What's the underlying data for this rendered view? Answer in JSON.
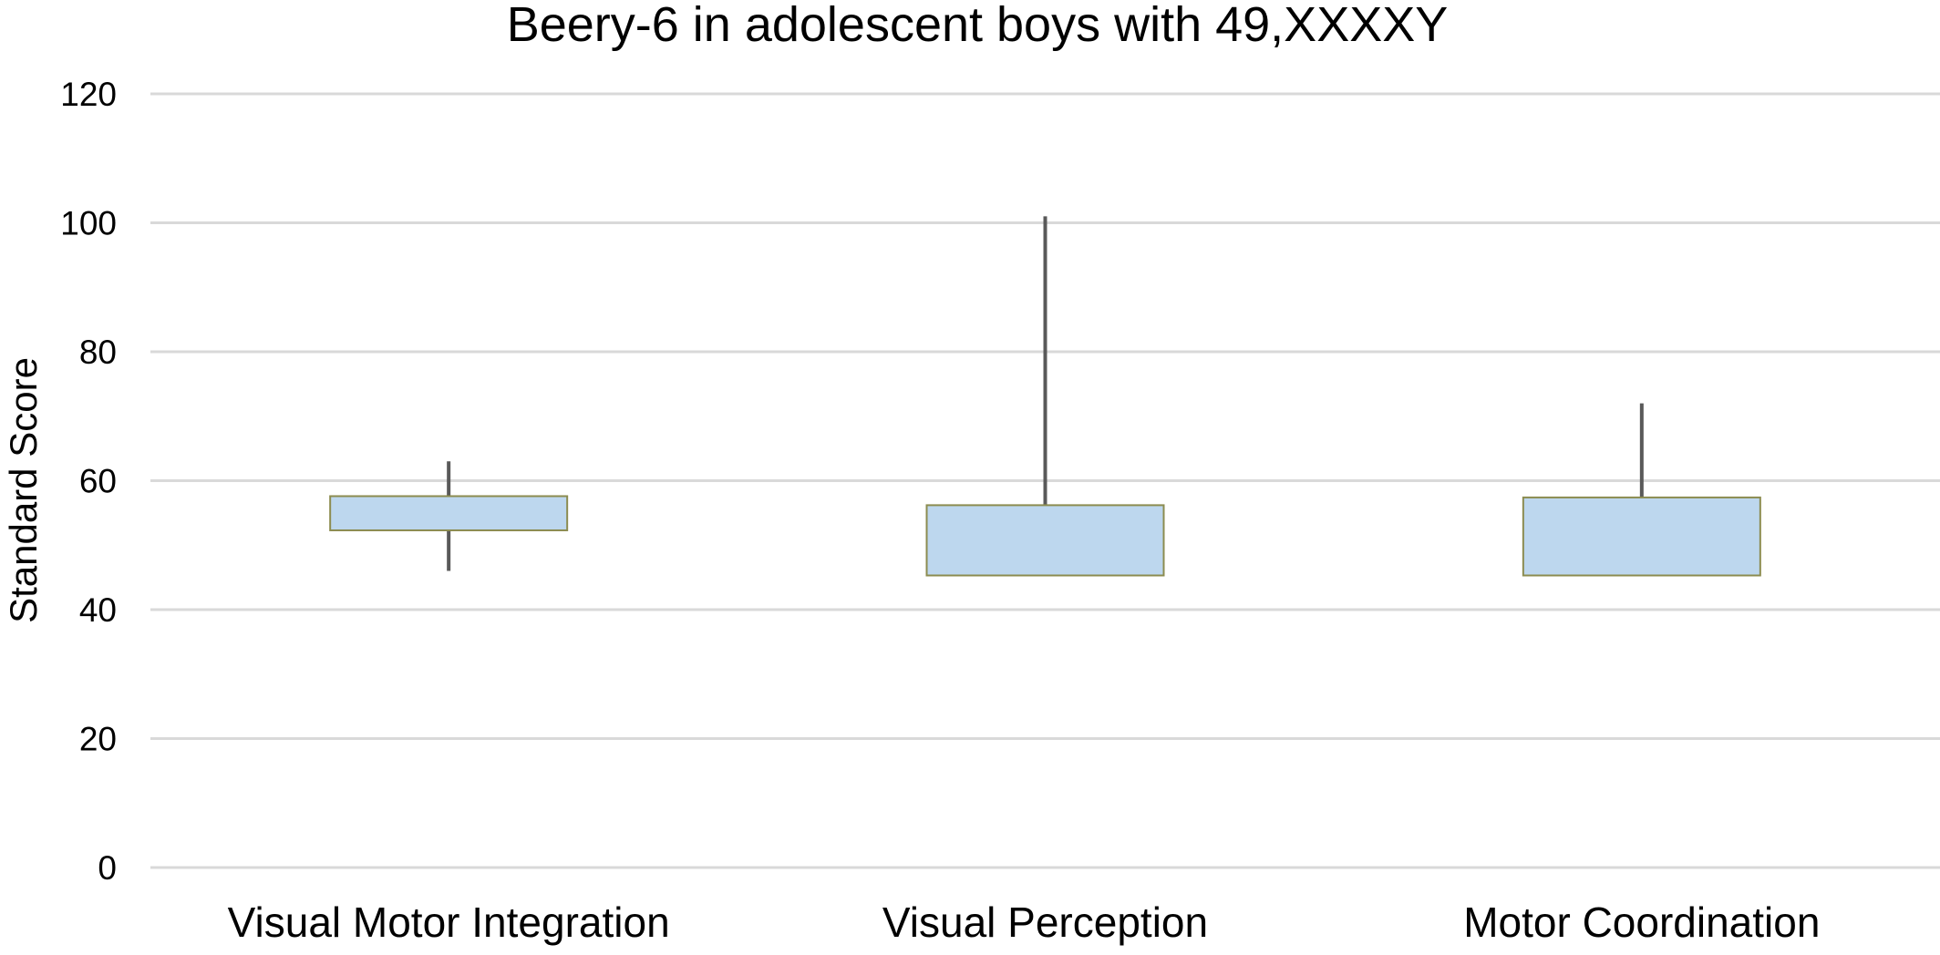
{
  "chart_data": {
    "type": "box",
    "title": "Beery-6 in adolescent boys with 49,XXXXY",
    "xlabel": "",
    "ylabel": "Standard Score",
    "ylim": [
      0,
      120
    ],
    "yticks": [
      0,
      20,
      40,
      60,
      80,
      100,
      120
    ],
    "grid": true,
    "legend": "none",
    "categories": [
      "Visual Motor Integration",
      "Visual Perception",
      "Motor Coordination"
    ],
    "series": [
      {
        "boxes": [
          {
            "category": "Visual Motor Integration",
            "whisker_low": 46,
            "q1": 52.3,
            "q3": 57.6,
            "whisker_high": 63
          },
          {
            "category": "Visual Perception",
            "whisker_low": 45.3,
            "q1": 45.3,
            "q3": 56.2,
            "whisker_high": 101
          },
          {
            "category": "Motor Coordination",
            "whisker_low": 45.3,
            "q1": 45.3,
            "q3": 57.4,
            "whisker_high": 72
          }
        ]
      }
    ],
    "colors": {
      "box_fill": "#BDD7EE",
      "box_border": "#8C8C50",
      "whisker": "#595959",
      "grid": "#D9D9D9"
    }
  }
}
